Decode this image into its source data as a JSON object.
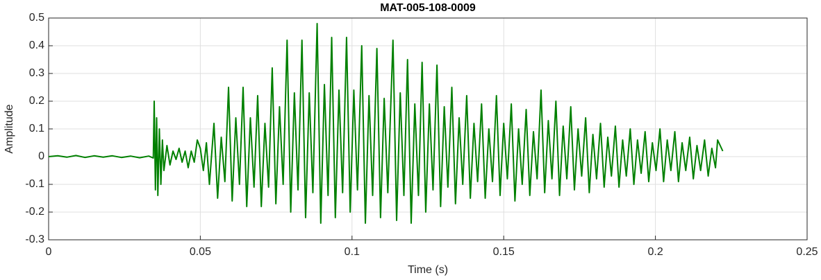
{
  "chart_data": {
    "type": "line",
    "title": "MAT-005-108-0009",
    "x_label": "Time (s)",
    "y_label": "Amplitude",
    "color": "#008000",
    "grid": true,
    "xlim": [
      0,
      0.25
    ],
    "xticks": [
      0,
      0.05,
      0.1,
      0.15,
      0.2,
      0.25
    ],
    "ylim": [
      -0.3,
      0.5
    ],
    "yticks": [
      -0.3,
      -0.2,
      -0.1,
      0,
      0.1,
      0.2,
      0.3,
      0.4,
      0.5
    ],
    "x": [
      0,
      0.003,
      0.006,
      0.009,
      0.012,
      0.015,
      0.018,
      0.021,
      0.024,
      0.027,
      0.03,
      0.033,
      0.0345,
      0.0348,
      0.0352,
      0.0356,
      0.036,
      0.0365,
      0.037,
      0.0375,
      0.038,
      0.039,
      0.04,
      0.041,
      0.042,
      0.043,
      0.044,
      0.045,
      0.046,
      0.047,
      0.048,
      0.049,
      0.05,
      0.051,
      0.052,
      0.053,
      0.0545,
      0.0557,
      0.0569,
      0.0581,
      0.0593,
      0.0605,
      0.0617,
      0.0629,
      0.0641,
      0.0653,
      0.0665,
      0.0677,
      0.0689,
      0.0701,
      0.0713,
      0.0725,
      0.0737,
      0.0749,
      0.0761,
      0.0773,
      0.0786,
      0.0798,
      0.081,
      0.0822,
      0.0835,
      0.0847,
      0.0859,
      0.0871,
      0.0885,
      0.0897,
      0.0909,
      0.0921,
      0.0933,
      0.0945,
      0.0957,
      0.0969,
      0.0982,
      0.0994,
      0.1006,
      0.1018,
      0.1032,
      0.1044,
      0.1056,
      0.1068,
      0.1082,
      0.1094,
      0.1106,
      0.1118,
      0.1135,
      0.1147,
      0.1159,
      0.1171,
      0.1183,
      0.1195,
      0.1207,
      0.1219,
      0.1231,
      0.1243,
      0.1255,
      0.1267,
      0.128,
      0.1292,
      0.1304,
      0.1316,
      0.1329,
      0.1341,
      0.1353,
      0.1365,
      0.1378,
      0.139,
      0.1402,
      0.1414,
      0.1427,
      0.1439,
      0.1451,
      0.1463,
      0.1476,
      0.1488,
      0.15,
      0.1512,
      0.1525,
      0.1537,
      0.1549,
      0.1561,
      0.1574,
      0.1586,
      0.1598,
      0.161,
      0.1623,
      0.1635,
      0.1647,
      0.1659,
      0.1672,
      0.1684,
      0.1696,
      0.1708,
      0.1721,
      0.1733,
      0.1745,
      0.1757,
      0.177,
      0.1782,
      0.1794,
      0.1806,
      0.1819,
      0.1831,
      0.1843,
      0.1855,
      0.1868,
      0.188,
      0.1892,
      0.1904,
      0.1917,
      0.1929,
      0.1941,
      0.1953,
      0.1966,
      0.1978,
      0.199,
      0.2002,
      0.2015,
      0.2027,
      0.2039,
      0.2051,
      0.2064,
      0.2076,
      0.2088,
      0.21,
      0.2113,
      0.2125,
      0.2137,
      0.2149,
      0.2162,
      0.2174,
      0.2186,
      0.2198,
      0.2205,
      0.2222
    ],
    "values": [
      0,
      0.003,
      -0.002,
      0.004,
      -0.003,
      0.003,
      -0.002,
      0.003,
      -0.003,
      0.002,
      -0.004,
      0.002,
      -0.005,
      0.2,
      -0.12,
      0.14,
      -0.14,
      0.1,
      -0.1,
      0.06,
      -0.05,
      0.04,
      -0.03,
      0.02,
      -0.01,
      0.03,
      -0.02,
      0.02,
      -0.04,
      0.02,
      -0.02,
      0.06,
      0.03,
      -0.05,
      0.05,
      -0.1,
      0.12,
      -0.15,
      0.07,
      -0.09,
      0.25,
      -0.16,
      0.14,
      -0.1,
      0.25,
      -0.18,
      0.14,
      -0.11,
      0.22,
      -0.18,
      0.12,
      -0.11,
      0.32,
      -0.17,
      0.18,
      -0.1,
      0.42,
      -0.2,
      0.23,
      -0.12,
      0.42,
      -0.22,
      0.23,
      -0.13,
      0.48,
      -0.24,
      0.26,
      -0.14,
      0.43,
      -0.22,
      0.24,
      -0.13,
      0.43,
      -0.2,
      0.24,
      -0.12,
      0.4,
      -0.24,
      0.22,
      -0.14,
      0.39,
      -0.22,
      0.21,
      -0.13,
      0.42,
      -0.23,
      0.23,
      -0.14,
      0.35,
      -0.24,
      0.19,
      -0.14,
      0.34,
      -0.2,
      0.19,
      -0.12,
      0.33,
      -0.18,
      0.18,
      -0.11,
      0.25,
      -0.17,
      0.14,
      -0.1,
      0.22,
      -0.15,
      0.12,
      -0.09,
      0.19,
      -0.15,
      0.1,
      -0.09,
      0.22,
      -0.14,
      0.12,
      -0.08,
      0.19,
      -0.16,
      0.1,
      -0.1,
      0.17,
      -0.14,
      0.09,
      -0.08,
      0.24,
      -0.13,
      0.13,
      -0.08,
      0.2,
      -0.14,
      0.11,
      -0.08,
      0.18,
      -0.12,
      0.1,
      -0.07,
      0.14,
      -0.13,
      0.08,
      -0.08,
      0.12,
      -0.11,
      0.07,
      -0.07,
      0.11,
      -0.11,
      0.06,
      -0.07,
      0.1,
      -0.1,
      0.06,
      -0.06,
      0.09,
      -0.09,
      0.05,
      -0.05,
      0.1,
      -0.09,
      0.06,
      -0.05,
      0.09,
      -0.09,
      0.05,
      -0.05,
      0.07,
      -0.08,
      0.04,
      -0.05,
      0.06,
      -0.07,
      0.03,
      -0.04,
      0.06,
      0.02
    ]
  }
}
